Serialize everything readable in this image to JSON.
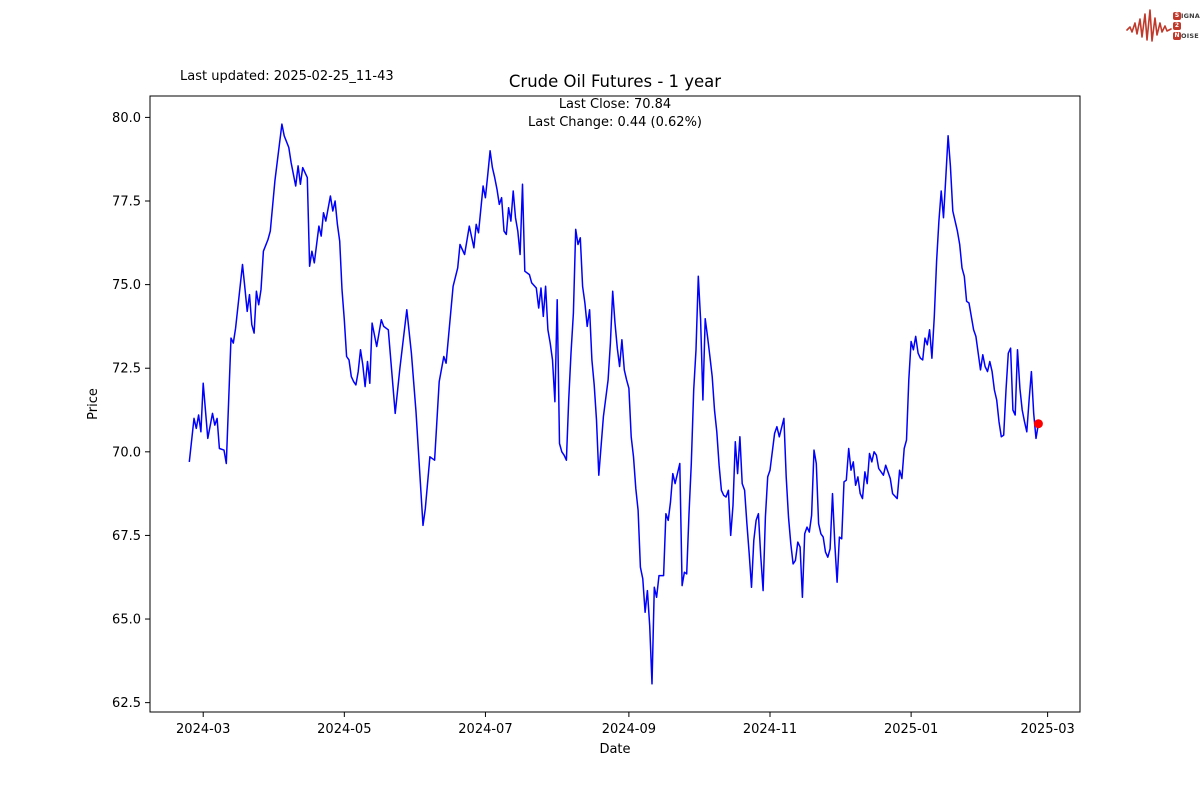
{
  "header": {
    "last_updated": "Last updated: 2025-02-25_11-43"
  },
  "logo": {
    "badge1": "S",
    "word1": "IGNAL",
    "badge2": "2",
    "word2": "",
    "badge3": "N",
    "word3": "OISE",
    "color": "#c0392b"
  },
  "chart_data": {
    "type": "line",
    "title": "Crude Oil Futures - 1 year",
    "subtitle_line1": "Last Close: 70.84",
    "subtitle_line2": "Last Change: 0.44 (0.62%)",
    "xlabel": "Date",
    "ylabel": "Price",
    "last_close": 70.84,
    "last_change": "0.44 (0.62%)",
    "line_color": "#0000ff",
    "marker_color": "#ff0000",
    "grid": false,
    "legend": "none",
    "xlim": [
      "2024-02-07",
      "2025-03-15"
    ],
    "ylim": [
      62.22,
      80.64
    ],
    "xticks": [
      {
        "date": "2024-03-01",
        "label": "2024-03"
      },
      {
        "date": "2024-05-01",
        "label": "2024-05"
      },
      {
        "date": "2024-07-01",
        "label": "2024-07"
      },
      {
        "date": "2024-09-01",
        "label": "2024-09"
      },
      {
        "date": "2024-11-01",
        "label": "2024-11"
      },
      {
        "date": "2025-01-01",
        "label": "2025-01"
      },
      {
        "date": "2025-03-01",
        "label": "2025-03"
      }
    ],
    "yticks": [
      62.5,
      65.0,
      67.5,
      70.0,
      72.5,
      75.0,
      77.5,
      80.0
    ],
    "points": [
      [
        "2024-02-24",
        69.7
      ],
      [
        "2024-02-26",
        71.0
      ],
      [
        "2024-02-27",
        70.7
      ],
      [
        "2024-02-28",
        71.1
      ],
      [
        "2024-02-29",
        70.6
      ],
      [
        "2024-03-01",
        72.05
      ],
      [
        "2024-03-03",
        70.4
      ],
      [
        "2024-03-05",
        71.15
      ],
      [
        "2024-03-06",
        70.8
      ],
      [
        "2024-03-07",
        71.0
      ],
      [
        "2024-03-08",
        70.1
      ],
      [
        "2024-03-10",
        70.05
      ],
      [
        "2024-03-11",
        69.65
      ],
      [
        "2024-03-13",
        73.4
      ],
      [
        "2024-03-14",
        73.25
      ],
      [
        "2024-03-15",
        73.7
      ],
      [
        "2024-03-18",
        75.6
      ],
      [
        "2024-03-19",
        74.9
      ],
      [
        "2024-03-20",
        74.2
      ],
      [
        "2024-03-21",
        74.7
      ],
      [
        "2024-03-22",
        73.8
      ],
      [
        "2024-03-23",
        73.55
      ],
      [
        "2024-03-24",
        74.8
      ],
      [
        "2024-03-25",
        74.4
      ],
      [
        "2024-03-26",
        74.85
      ],
      [
        "2024-03-27",
        76.0
      ],
      [
        "2024-03-29",
        76.35
      ],
      [
        "2024-03-30",
        76.6
      ],
      [
        "2024-04-01",
        78.1
      ],
      [
        "2024-04-04",
        79.8
      ],
      [
        "2024-04-05",
        79.45
      ],
      [
        "2024-04-07",
        79.1
      ],
      [
        "2024-04-08",
        78.65
      ],
      [
        "2024-04-09",
        78.3
      ],
      [
        "2024-04-10",
        77.95
      ],
      [
        "2024-04-11",
        78.55
      ],
      [
        "2024-04-12",
        78.0
      ],
      [
        "2024-04-13",
        78.5
      ],
      [
        "2024-04-15",
        78.2
      ],
      [
        "2024-04-16",
        75.55
      ],
      [
        "2024-04-17",
        76.0
      ],
      [
        "2024-04-18",
        75.65
      ],
      [
        "2024-04-20",
        76.75
      ],
      [
        "2024-04-21",
        76.45
      ],
      [
        "2024-04-22",
        77.15
      ],
      [
        "2024-04-23",
        76.9
      ],
      [
        "2024-04-25",
        77.65
      ],
      [
        "2024-04-26",
        77.2
      ],
      [
        "2024-04-27",
        77.5
      ],
      [
        "2024-04-28",
        76.8
      ],
      [
        "2024-04-29",
        76.3
      ],
      [
        "2024-04-30",
        74.85
      ],
      [
        "2024-05-01",
        73.95
      ],
      [
        "2024-05-02",
        72.85
      ],
      [
        "2024-05-03",
        72.75
      ],
      [
        "2024-05-04",
        72.25
      ],
      [
        "2024-05-05",
        72.1
      ],
      [
        "2024-05-06",
        72.0
      ],
      [
        "2024-05-07",
        72.4
      ],
      [
        "2024-05-08",
        73.05
      ],
      [
        "2024-05-09",
        72.6
      ],
      [
        "2024-05-10",
        71.95
      ],
      [
        "2024-05-11",
        72.7
      ],
      [
        "2024-05-12",
        72.05
      ],
      [
        "2024-05-13",
        73.85
      ],
      [
        "2024-05-15",
        73.15
      ],
      [
        "2024-05-17",
        73.95
      ],
      [
        "2024-05-18",
        73.75
      ],
      [
        "2024-05-20",
        73.65
      ],
      [
        "2024-05-23",
        71.15
      ],
      [
        "2024-05-25",
        72.5
      ],
      [
        "2024-05-28",
        74.25
      ],
      [
        "2024-05-30",
        72.95
      ],
      [
        "2024-06-01",
        71.2
      ],
      [
        "2024-06-04",
        67.8
      ],
      [
        "2024-06-05",
        68.3
      ],
      [
        "2024-06-07",
        69.85
      ],
      [
        "2024-06-09",
        69.75
      ],
      [
        "2024-06-11",
        72.1
      ],
      [
        "2024-06-13",
        72.85
      ],
      [
        "2024-06-14",
        72.65
      ],
      [
        "2024-06-17",
        74.95
      ],
      [
        "2024-06-19",
        75.5
      ],
      [
        "2024-06-20",
        76.2
      ],
      [
        "2024-06-22",
        75.9
      ],
      [
        "2024-06-24",
        76.75
      ],
      [
        "2024-06-26",
        76.1
      ],
      [
        "2024-06-27",
        76.8
      ],
      [
        "2024-06-28",
        76.55
      ],
      [
        "2024-06-30",
        77.95
      ],
      [
        "2024-07-01",
        77.6
      ],
      [
        "2024-07-02",
        78.3
      ],
      [
        "2024-07-03",
        79.0
      ],
      [
        "2024-07-04",
        78.5
      ],
      [
        "2024-07-05",
        78.2
      ],
      [
        "2024-07-06",
        77.85
      ],
      [
        "2024-07-07",
        77.4
      ],
      [
        "2024-07-08",
        77.6
      ],
      [
        "2024-07-09",
        76.6
      ],
      [
        "2024-07-10",
        76.5
      ],
      [
        "2024-07-11",
        77.3
      ],
      [
        "2024-07-12",
        76.9
      ],
      [
        "2024-07-13",
        77.8
      ],
      [
        "2024-07-14",
        77.0
      ],
      [
        "2024-07-15",
        76.6
      ],
      [
        "2024-07-16",
        75.9
      ],
      [
        "2024-07-17",
        78.0
      ],
      [
        "2024-07-18",
        75.4
      ],
      [
        "2024-07-20",
        75.3
      ],
      [
        "2024-07-21",
        75.05
      ],
      [
        "2024-07-23",
        74.9
      ],
      [
        "2024-07-24",
        74.3
      ],
      [
        "2024-07-25",
        74.9
      ],
      [
        "2024-07-26",
        74.05
      ],
      [
        "2024-07-27",
        74.95
      ],
      [
        "2024-07-28",
        73.65
      ],
      [
        "2024-07-29",
        73.25
      ],
      [
        "2024-07-30",
        72.75
      ],
      [
        "2024-07-31",
        71.5
      ],
      [
        "2024-08-01",
        74.55
      ],
      [
        "2024-08-02",
        70.25
      ],
      [
        "2024-08-03",
        70.0
      ],
      [
        "2024-08-04",
        69.9
      ],
      [
        "2024-08-05",
        69.75
      ],
      [
        "2024-08-06",
        71.55
      ],
      [
        "2024-08-07",
        72.95
      ],
      [
        "2024-08-08",
        74.15
      ],
      [
        "2024-08-09",
        76.65
      ],
      [
        "2024-08-10",
        76.2
      ],
      [
        "2024-08-11",
        76.4
      ],
      [
        "2024-08-12",
        74.95
      ],
      [
        "2024-08-13",
        74.45
      ],
      [
        "2024-08-14",
        73.75
      ],
      [
        "2024-08-15",
        74.25
      ],
      [
        "2024-08-16",
        72.75
      ],
      [
        "2024-08-17",
        72.0
      ],
      [
        "2024-08-18",
        70.95
      ],
      [
        "2024-08-19",
        69.3
      ],
      [
        "2024-08-21",
        71.05
      ],
      [
        "2024-08-23",
        72.15
      ],
      [
        "2024-08-24",
        73.25
      ],
      [
        "2024-08-25",
        74.8
      ],
      [
        "2024-08-26",
        73.85
      ],
      [
        "2024-08-27",
        73.1
      ],
      [
        "2024-08-28",
        72.55
      ],
      [
        "2024-08-29",
        73.35
      ],
      [
        "2024-08-30",
        72.45
      ],
      [
        "2024-08-31",
        72.15
      ],
      [
        "2024-09-01",
        71.9
      ],
      [
        "2024-09-02",
        70.45
      ],
      [
        "2024-09-03",
        69.85
      ],
      [
        "2024-09-04",
        68.9
      ],
      [
        "2024-09-05",
        68.25
      ],
      [
        "2024-09-06",
        66.55
      ],
      [
        "2024-09-07",
        66.2
      ],
      [
        "2024-09-08",
        65.2
      ],
      [
        "2024-09-09",
        65.85
      ],
      [
        "2024-09-10",
        64.8
      ],
      [
        "2024-09-11",
        63.06
      ],
      [
        "2024-09-12",
        65.95
      ],
      [
        "2024-09-13",
        65.65
      ],
      [
        "2024-09-14",
        66.3
      ],
      [
        "2024-09-16",
        66.3
      ],
      [
        "2024-09-17",
        68.15
      ],
      [
        "2024-09-18",
        67.95
      ],
      [
        "2024-09-19",
        68.5
      ],
      [
        "2024-09-20",
        69.35
      ],
      [
        "2024-09-21",
        69.05
      ],
      [
        "2024-09-23",
        69.65
      ],
      [
        "2024-09-24",
        66.0
      ],
      [
        "2024-09-25",
        66.4
      ],
      [
        "2024-09-26",
        66.35
      ],
      [
        "2024-09-27",
        68.15
      ],
      [
        "2024-09-28",
        69.65
      ],
      [
        "2024-09-29",
        71.85
      ],
      [
        "2024-09-30",
        73.05
      ],
      [
        "2024-10-01",
        75.25
      ],
      [
        "2024-10-02",
        73.95
      ],
      [
        "2024-10-03",
        71.55
      ],
      [
        "2024-10-04",
        73.98
      ],
      [
        "2024-10-05",
        73.45
      ],
      [
        "2024-10-06",
        72.85
      ],
      [
        "2024-10-07",
        72.25
      ],
      [
        "2024-10-08",
        71.25
      ],
      [
        "2024-10-09",
        70.6
      ],
      [
        "2024-10-10",
        69.6
      ],
      [
        "2024-10-11",
        68.85
      ],
      [
        "2024-10-12",
        68.7
      ],
      [
        "2024-10-13",
        68.65
      ],
      [
        "2024-10-14",
        68.85
      ],
      [
        "2024-10-15",
        67.5
      ],
      [
        "2024-10-16",
        68.4
      ],
      [
        "2024-10-17",
        70.3
      ],
      [
        "2024-10-18",
        69.35
      ],
      [
        "2024-10-19",
        70.45
      ],
      [
        "2024-10-20",
        69.05
      ],
      [
        "2024-10-21",
        68.85
      ],
      [
        "2024-10-22",
        67.85
      ],
      [
        "2024-10-23",
        66.95
      ],
      [
        "2024-10-24",
        65.95
      ],
      [
        "2024-10-25",
        67.35
      ],
      [
        "2024-10-26",
        67.95
      ],
      [
        "2024-10-27",
        68.15
      ],
      [
        "2024-10-28",
        66.9
      ],
      [
        "2024-10-29",
        65.85
      ],
      [
        "2024-10-30",
        68.05
      ],
      [
        "2024-10-31",
        69.25
      ],
      [
        "2024-11-01",
        69.45
      ],
      [
        "2024-11-03",
        70.55
      ],
      [
        "2024-11-04",
        70.75
      ],
      [
        "2024-11-05",
        70.45
      ],
      [
        "2024-11-07",
        71.0
      ],
      [
        "2024-11-08",
        69.25
      ],
      [
        "2024-11-09",
        68.05
      ],
      [
        "2024-11-10",
        67.25
      ],
      [
        "2024-11-11",
        66.65
      ],
      [
        "2024-11-12",
        66.75
      ],
      [
        "2024-11-13",
        67.3
      ],
      [
        "2024-11-14",
        67.15
      ],
      [
        "2024-11-15",
        65.65
      ],
      [
        "2024-11-16",
        67.55
      ],
      [
        "2024-11-17",
        67.75
      ],
      [
        "2024-11-18",
        67.6
      ],
      [
        "2024-11-19",
        68.1
      ],
      [
        "2024-11-20",
        70.05
      ],
      [
        "2024-11-21",
        69.65
      ],
      [
        "2024-11-22",
        67.85
      ],
      [
        "2024-11-23",
        67.55
      ],
      [
        "2024-11-24",
        67.45
      ],
      [
        "2024-11-25",
        67.0
      ],
      [
        "2024-11-26",
        66.85
      ],
      [
        "2024-11-27",
        67.1
      ],
      [
        "2024-11-28",
        68.75
      ],
      [
        "2024-11-29",
        67.25
      ],
      [
        "2024-11-30",
        66.1
      ],
      [
        "2024-12-01",
        67.45
      ],
      [
        "2024-12-02",
        67.4
      ],
      [
        "2024-12-03",
        69.1
      ],
      [
        "2024-12-04",
        69.15
      ],
      [
        "2024-12-05",
        70.1
      ],
      [
        "2024-12-06",
        69.45
      ],
      [
        "2024-12-07",
        69.7
      ],
      [
        "2024-12-08",
        69.0
      ],
      [
        "2024-12-09",
        69.25
      ],
      [
        "2024-12-10",
        68.75
      ],
      [
        "2024-12-11",
        68.6
      ],
      [
        "2024-12-12",
        69.4
      ],
      [
        "2024-12-13",
        69.05
      ],
      [
        "2024-12-14",
        69.95
      ],
      [
        "2024-12-15",
        69.7
      ],
      [
        "2024-12-16",
        70.0
      ],
      [
        "2024-12-17",
        69.9
      ],
      [
        "2024-12-18",
        69.5
      ],
      [
        "2024-12-20",
        69.3
      ],
      [
        "2024-12-21",
        69.6
      ],
      [
        "2024-12-23",
        69.2
      ],
      [
        "2024-12-24",
        68.75
      ],
      [
        "2024-12-26",
        68.6
      ],
      [
        "2024-12-27",
        69.45
      ],
      [
        "2024-12-28",
        69.2
      ],
      [
        "2024-12-29",
        70.1
      ],
      [
        "2024-12-30",
        70.35
      ],
      [
        "2024-12-31",
        72.15
      ],
      [
        "2025-01-01",
        73.3
      ],
      [
        "2025-01-02",
        73.05
      ],
      [
        "2025-01-03",
        73.45
      ],
      [
        "2025-01-04",
        72.95
      ],
      [
        "2025-01-05",
        72.8
      ],
      [
        "2025-01-06",
        72.75
      ],
      [
        "2025-01-07",
        73.4
      ],
      [
        "2025-01-08",
        73.2
      ],
      [
        "2025-01-09",
        73.65
      ],
      [
        "2025-01-10",
        72.8
      ],
      [
        "2025-01-11",
        74.05
      ],
      [
        "2025-01-12",
        75.7
      ],
      [
        "2025-01-13",
        76.9
      ],
      [
        "2025-01-14",
        77.8
      ],
      [
        "2025-01-15",
        77.0
      ],
      [
        "2025-01-16",
        78.2
      ],
      [
        "2025-01-17",
        79.45
      ],
      [
        "2025-01-18",
        78.55
      ],
      [
        "2025-01-19",
        77.2
      ],
      [
        "2025-01-20",
        76.9
      ],
      [
        "2025-01-21",
        76.6
      ],
      [
        "2025-01-22",
        76.2
      ],
      [
        "2025-01-23",
        75.5
      ],
      [
        "2025-01-24",
        75.25
      ],
      [
        "2025-01-25",
        74.5
      ],
      [
        "2025-01-26",
        74.45
      ],
      [
        "2025-01-28",
        73.65
      ],
      [
        "2025-01-29",
        73.45
      ],
      [
        "2025-01-30",
        72.95
      ],
      [
        "2025-01-31",
        72.45
      ],
      [
        "2025-02-01",
        72.9
      ],
      [
        "2025-02-02",
        72.55
      ],
      [
        "2025-02-03",
        72.4
      ],
      [
        "2025-02-04",
        72.7
      ],
      [
        "2025-02-05",
        72.4
      ],
      [
        "2025-02-06",
        71.85
      ],
      [
        "2025-02-07",
        71.55
      ],
      [
        "2025-02-08",
        70.9
      ],
      [
        "2025-02-09",
        70.45
      ],
      [
        "2025-02-10",
        70.5
      ],
      [
        "2025-02-11",
        71.85
      ],
      [
        "2025-02-12",
        72.95
      ],
      [
        "2025-02-13",
        73.1
      ],
      [
        "2025-02-14",
        71.25
      ],
      [
        "2025-02-15",
        71.1
      ],
      [
        "2025-02-16",
        73.05
      ],
      [
        "2025-02-17",
        71.9
      ],
      [
        "2025-02-18",
        71.25
      ],
      [
        "2025-02-19",
        70.9
      ],
      [
        "2025-02-20",
        70.6
      ],
      [
        "2025-02-21",
        71.55
      ],
      [
        "2025-02-22",
        72.4
      ],
      [
        "2025-02-23",
        71.15
      ],
      [
        "2025-02-24",
        70.4
      ],
      [
        "2025-02-25",
        70.84
      ]
    ]
  }
}
